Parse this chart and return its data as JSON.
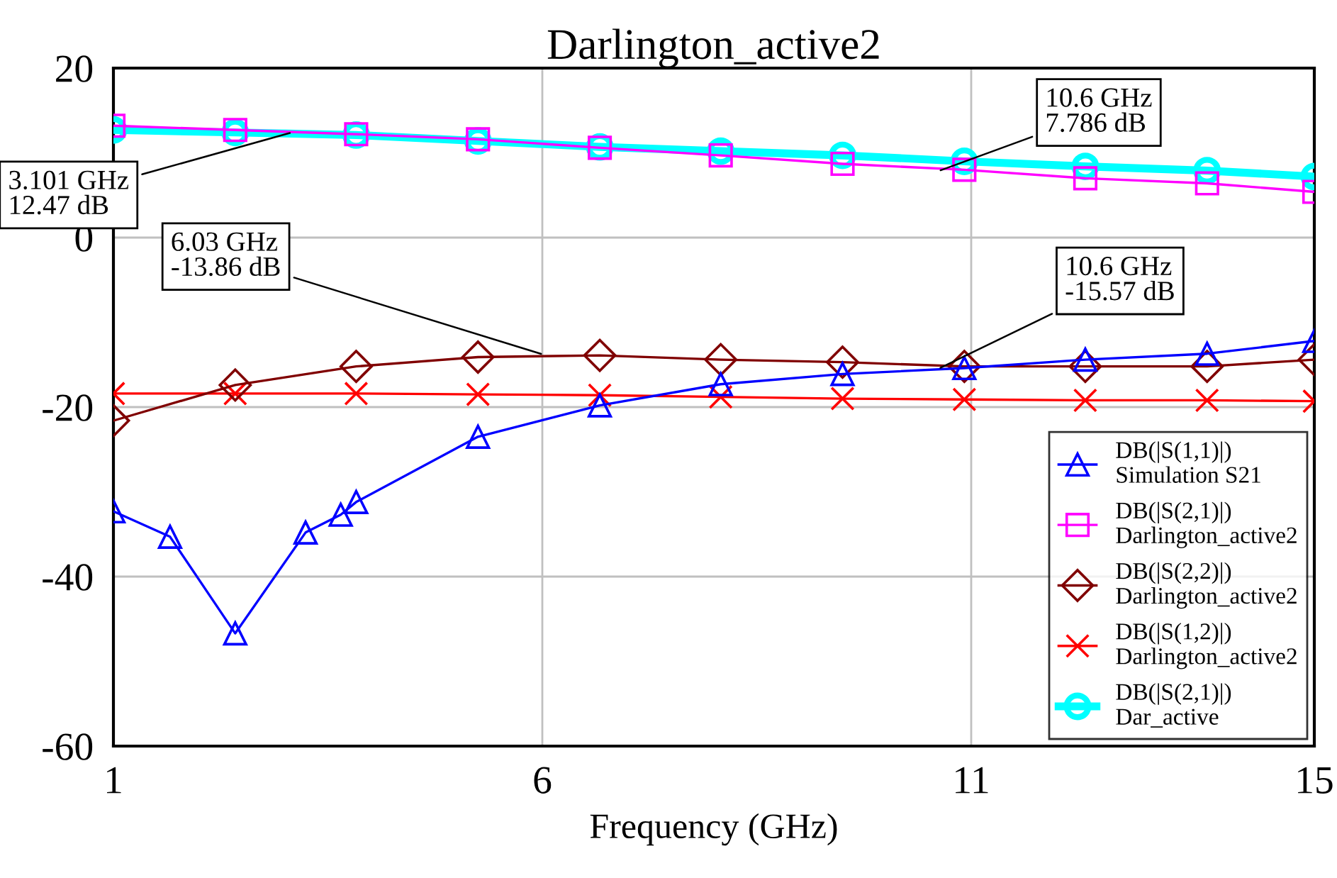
{
  "chart_data": {
    "type": "line",
    "title": "Darlington_active2",
    "xlabel": "Frequency (GHz)",
    "x": [
      1,
      2.42,
      3.83,
      5.25,
      6.67,
      8.08,
      9.5,
      10.92,
      12.33,
      13.75,
      15
    ],
    "xlim": [
      1,
      15
    ],
    "xticks": [
      1,
      6,
      11,
      15
    ],
    "ylim": [
      -60,
      20
    ],
    "yticks": [
      -60,
      -40,
      -20,
      0,
      20
    ],
    "grid": true,
    "legend": "bottom right",
    "series": [
      {
        "name": "DB(|S(1,1)|)\nSimulation S21",
        "color": "#0000ff",
        "marker": "triangle",
        "x": [
          1,
          1.66,
          2.42,
          3.24,
          3.65,
          3.83,
          5.25,
          6.67,
          8.08,
          9.5,
          10.92,
          12.33,
          13.75,
          15
        ],
        "values": [
          -32.3,
          -35.3,
          -46.7,
          -34.8,
          -32.7,
          -31.2,
          -23.5,
          -19.8,
          -17.3,
          -16.1,
          -15.4,
          -14.4,
          -13.7,
          -12.2
        ]
      },
      {
        "name": "DB(|S(2,1)|)\nDarlington_active2",
        "color": "#ff00ff",
        "marker": "square",
        "values": [
          13.2,
          12.7,
          12.2,
          11.6,
          10.6,
          9.7,
          8.7,
          8.0,
          7.0,
          6.4,
          5.4
        ]
      },
      {
        "name": "DB(|S(2,2)|)\nDarlington_active2",
        "color": "#800000",
        "marker": "diamond",
        "values": [
          -21.6,
          -17.4,
          -15.2,
          -14.1,
          -13.9,
          -14.4,
          -14.7,
          -15.2,
          -15.2,
          -15.2,
          -14.4
        ]
      },
      {
        "name": "DB(|S(1,2)|)\nDarlington_active2",
        "color": "#ff0000",
        "marker": "cross",
        "values": [
          -18.4,
          -18.4,
          -18.4,
          -18.5,
          -18.6,
          -18.8,
          -19.0,
          -19.1,
          -19.2,
          -19.2,
          -19.3
        ]
      },
      {
        "name": "DB(|S(2,1)|)\nDar_active",
        "color": "#00ffff",
        "marker": "circle",
        "values": [
          12.7,
          12.4,
          12.1,
          11.4,
          10.7,
          10.2,
          9.7,
          9.0,
          8.4,
          7.9,
          7.2
        ]
      }
    ],
    "annotations": [
      {
        "text": "3.101 GHz\n12.47 dB",
        "x": 3.101,
        "y": 12.47
      },
      {
        "text": "10.6 GHz\n7.786 dB",
        "x": 10.6,
        "y": 7.786
      },
      {
        "text": "6.03 GHz\n-13.86 dB",
        "x": 6.03,
        "y": -13.86
      },
      {
        "text": "10.6 GHz\n-15.57 dB",
        "x": 10.6,
        "y": -15.57
      }
    ]
  }
}
